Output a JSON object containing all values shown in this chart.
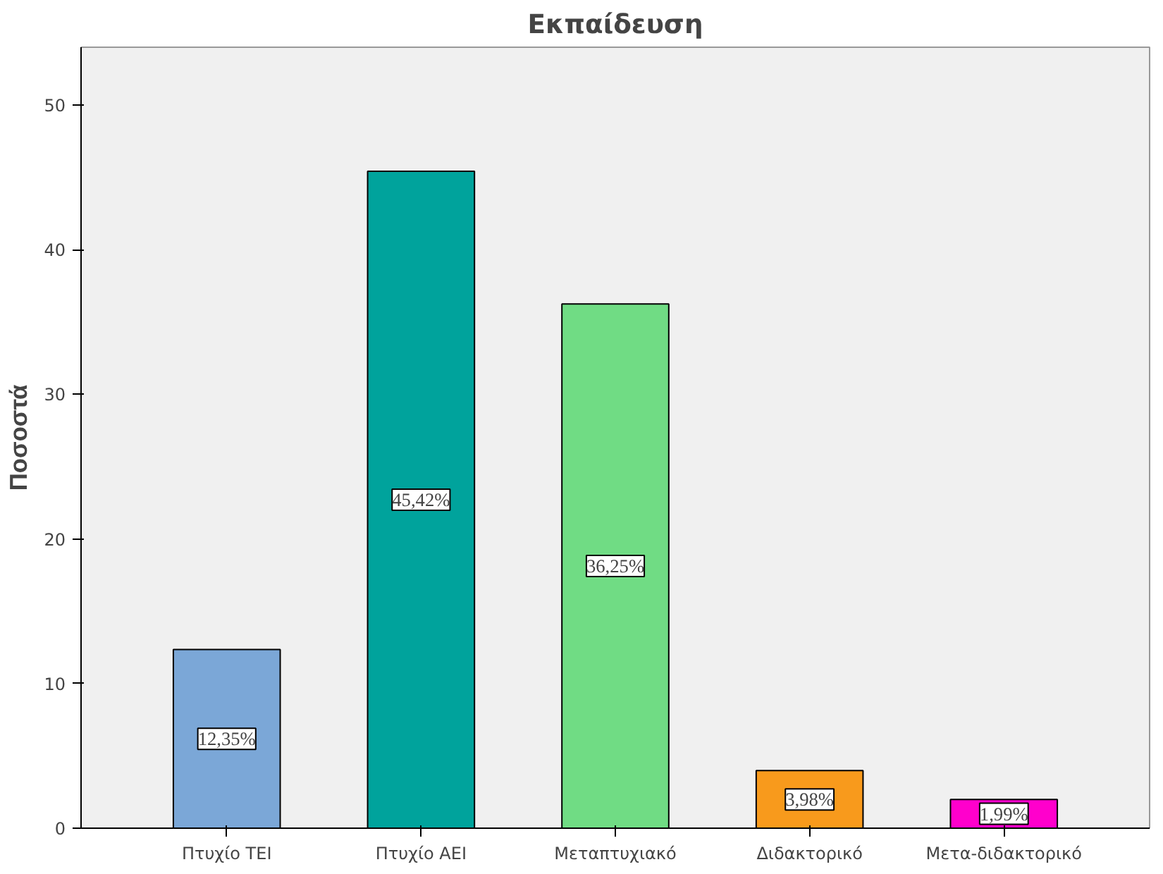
{
  "chart_data": {
    "type": "bar",
    "title": "Εκπαίδευση",
    "ylabel": "Ποσοστά",
    "categories": [
      "Πτυχίο TEI",
      "Πτυχίο AEI",
      "Μεταπτυχιακό",
      "Διδακτορικό",
      "Μετα-διδακτορικό"
    ],
    "values": [
      12.35,
      45.42,
      36.25,
      3.98,
      1.99
    ],
    "colors": [
      "#7ba7d7",
      "#00a39c",
      "#70dc84",
      "#f89a1c",
      "#ff00cc"
    ],
    "value_labels": [
      "12,35%",
      "45,42%",
      "36,25%",
      "3,98%",
      "1,99%"
    ],
    "ylim": [
      0,
      54
    ],
    "yticks": [
      0,
      10,
      20,
      30,
      40,
      50
    ],
    "grid": false
  }
}
